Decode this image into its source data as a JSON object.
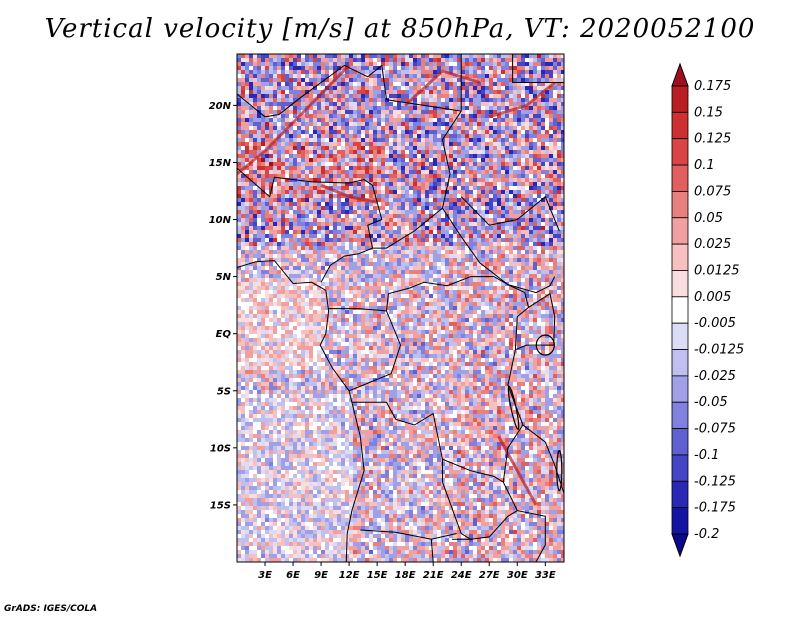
{
  "title": "Vertical velocity [m/s] at 850hPa, VT: 2020052100",
  "footer": "GrADS: IGES/COLA",
  "map": {
    "lon_range": [
      0,
      35
    ],
    "lat_range": [
      -20,
      24.5
    ],
    "lat_ticks": [
      {
        "value": 20,
        "label": "20N"
      },
      {
        "value": 15,
        "label": "15N"
      },
      {
        "value": 10,
        "label": "10N"
      },
      {
        "value": 5,
        "label": "5N"
      },
      {
        "value": 0,
        "label": "EQ"
      },
      {
        "value": -5,
        "label": "5S"
      },
      {
        "value": -10,
        "label": "10S"
      },
      {
        "value": -15,
        "label": "15S"
      }
    ],
    "lon_ticks": [
      {
        "value": 3,
        "label": "3E"
      },
      {
        "value": 6,
        "label": "6E"
      },
      {
        "value": 9,
        "label": "9E"
      },
      {
        "value": 12,
        "label": "12E"
      },
      {
        "value": 15,
        "label": "15E"
      },
      {
        "value": 18,
        "label": "18E"
      },
      {
        "value": 21,
        "label": "21E"
      },
      {
        "value": 24,
        "label": "24E"
      },
      {
        "value": 27,
        "label": "27E"
      },
      {
        "value": 30,
        "label": "30E"
      },
      {
        "value": 33,
        "label": "33E"
      }
    ]
  },
  "colorbar": {
    "labels": [
      "0.175",
      "0.15",
      "0.125",
      "0.1",
      "0.075",
      "0.05",
      "0.025",
      "0.0125",
      "0.005",
      "-0.005",
      "-0.0125",
      "-0.025",
      "-0.05",
      "-0.075",
      "-0.1",
      "-0.125",
      "-0.175",
      "-0.2"
    ],
    "colors": [
      "#a0101c",
      "#b81e22",
      "#cc3030",
      "#d94545",
      "#e06060",
      "#e88080",
      "#f0a0a0",
      "#f6c0c0",
      "#fadddd",
      "#ffffff",
      "#dcdcf6",
      "#c0c0f0",
      "#a0a0e6",
      "#8080dd",
      "#6060d0",
      "#4444c4",
      "#2828b4",
      "#1414a4",
      "#0a0a8c"
    ]
  }
}
